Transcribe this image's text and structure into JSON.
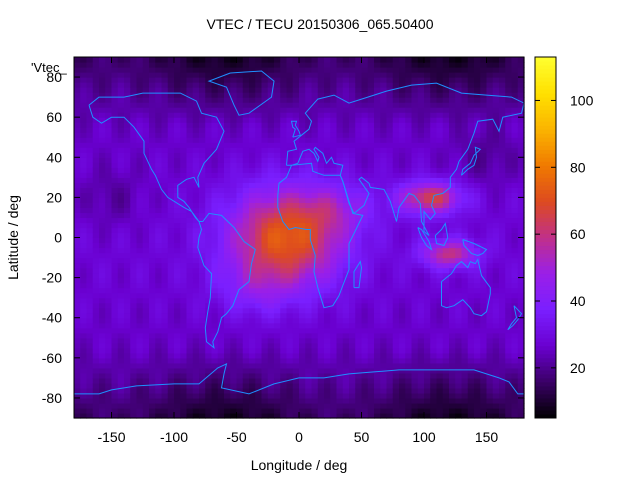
{
  "chart_data": {
    "type": "heatmap",
    "title": "VTEC / TECU 20150306_065.50400",
    "key_label": "'Vtec_",
    "xlabel": "Longitude / deg",
    "ylabel": "Latitude / deg",
    "xlim": [
      -180,
      180
    ],
    "ylim": [
      -90,
      90
    ],
    "x_ticks": [
      "-150",
      "-100",
      "-50",
      "0",
      "50",
      "100",
      "150"
    ],
    "x_tick_values": [
      -150,
      -100,
      -50,
      0,
      50,
      100,
      150
    ],
    "y_ticks": [
      "-80",
      "-60",
      "-40",
      "-20",
      "0",
      "20",
      "40",
      "60",
      "80"
    ],
    "y_tick_values": [
      -80,
      -60,
      -40,
      -20,
      0,
      20,
      40,
      60,
      80
    ],
    "colorbar": {
      "range": [
        5,
        113
      ],
      "ticks": [
        "20",
        "40",
        "60",
        "80",
        "100"
      ],
      "tick_values": [
        20,
        40,
        60,
        80,
        100
      ],
      "palette": [
        "#000000",
        "#3a0066",
        "#6a00d0",
        "#7a1fff",
        "#9a1fe8",
        "#c0308a",
        "#dd4a20",
        "#f07a00",
        "#fbb400",
        "#ffe000",
        "#ffff30"
      ]
    },
    "grid": false,
    "features": {
      "background_vtec": 22,
      "equatorial_anomaly_peak": 74,
      "anomaly_center_lon": 0,
      "anomaly_center_lat": 5,
      "asia_peak_vtec": 68,
      "australia_peak_vtec": 62,
      "polar_min_vtec": 8
    },
    "coastline_color": "#1e90ff"
  }
}
